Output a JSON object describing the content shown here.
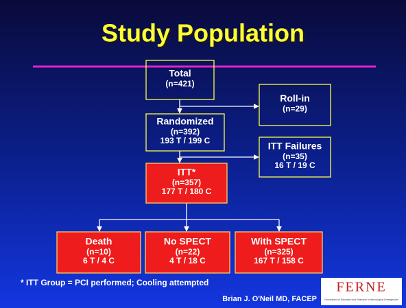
{
  "title": "Study Population",
  "nodes": [
    {
      "lines": [
        "Total",
        "(n=421)"
      ]
    },
    {
      "lines": [
        "Roll-in",
        "(n=29)"
      ]
    },
    {
      "lines": [
        "Randomized",
        "(n=392)",
        "193 T / 199 C"
      ]
    },
    {
      "lines": [
        "ITT Failures",
        "(n=35)",
        "16 T / 19 C"
      ]
    },
    {
      "lines": [
        "ITT*",
        "(n=357)",
        "177 T / 180 C"
      ]
    },
    {
      "lines": [
        "Death",
        "(n=10)",
        "6 T / 4 C"
      ]
    },
    {
      "lines": [
        "No SPECT",
        "(n=22)",
        "4 T / 18 C"
      ]
    },
    {
      "lines": [
        "With SPECT",
        "(n=325)",
        "167 T / 158 C"
      ]
    }
  ],
  "footnote": "* ITT Group = PCI performed; Cooling attempted",
  "author": "Brian J. O'Neil MD, FACEP",
  "logo": {
    "name": "FERNE",
    "tagline": "Foundation for Education and Research in Neurological Emergencies"
  }
}
